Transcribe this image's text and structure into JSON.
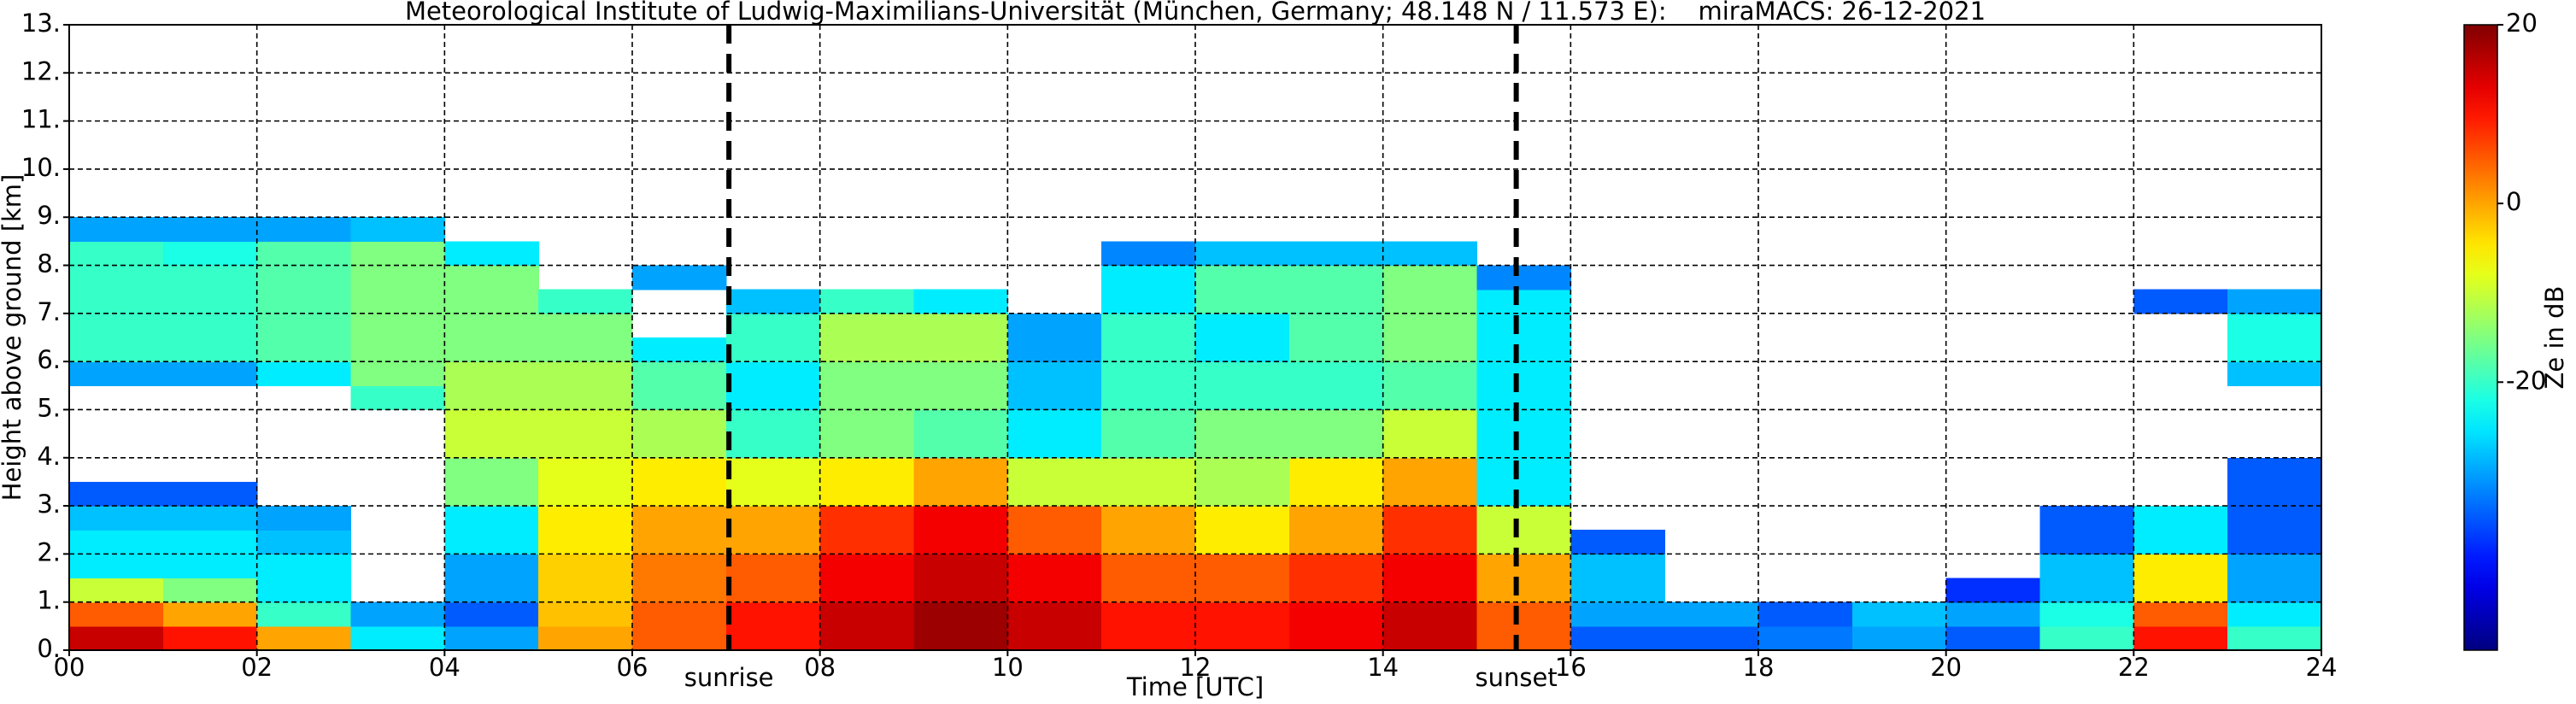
{
  "chart_data": {
    "type": "heatmap",
    "title": "Meteorological Institute of Ludwig-Maximilians-Universität (München, Germany; 48.148 N / 11.573 E):    miraMACS: 26-12-2021",
    "xlabel": "Time [UTC]",
    "ylabel": "Height above ground [km]",
    "colorbar_label": "Ze in dB",
    "colormap": "jet",
    "grid": true,
    "xlim": [
      0,
      24
    ],
    "ylim": [
      0,
      13
    ],
    "clim": [
      -50,
      20
    ],
    "xticks": [
      {
        "value": 0,
        "label": "00"
      },
      {
        "value": 2,
        "label": "02"
      },
      {
        "value": 4,
        "label": "04"
      },
      {
        "value": 6,
        "label": "06"
      },
      {
        "value": 8,
        "label": "08"
      },
      10,
      12,
      14,
      16,
      18,
      20,
      22,
      24
    ],
    "yticks": [
      {
        "value": 0,
        "label": "0."
      },
      {
        "value": 1,
        "label": "1."
      },
      {
        "value": 2,
        "label": "2."
      },
      {
        "value": 3,
        "label": "3."
      },
      {
        "value": 4,
        "label": "4."
      },
      {
        "value": 5,
        "label": "5."
      },
      {
        "value": 6,
        "label": "6."
      },
      {
        "value": 7,
        "label": "7."
      },
      {
        "value": 8,
        "label": "8."
      },
      {
        "value": 9,
        "label": "9."
      },
      {
        "value": 10,
        "label": "10."
      },
      {
        "value": 11,
        "label": "11."
      },
      {
        "value": 12,
        "label": "12."
      },
      {
        "value": 13,
        "label": "13."
      }
    ],
    "cticks": [
      -20,
      0,
      20
    ],
    "annotations": [
      {
        "text": "sunrise",
        "x": 7.03
      },
      {
        "text": "sunset",
        "x": 15.42
      }
    ],
    "x": [
      0,
      1,
      2,
      3,
      4,
      5,
      6,
      7,
      8,
      9,
      10,
      11,
      12,
      13,
      14,
      15,
      16,
      17,
      18,
      19,
      20,
      21,
      22,
      23,
      24
    ],
    "y": [
      0,
      0.5,
      1,
      1.5,
      2,
      2.5,
      3,
      3.5,
      4,
      4.5,
      5,
      5.5,
      6,
      6.5,
      7,
      7.5,
      8,
      8.5,
      9
    ],
    "z": [
      [
        15,
        10,
        0,
        -25,
        -30,
        0,
        5,
        10,
        15,
        18,
        15,
        10,
        10,
        12,
        15,
        5,
        -35,
        -35,
        -33,
        -30,
        -35,
        -20,
        10,
        -20
      ],
      [
        5,
        0,
        -20,
        -30,
        -35,
        -2,
        5,
        10,
        15,
        18,
        15,
        10,
        10,
        12,
        15,
        5,
        -30,
        -30,
        -35,
        -28,
        -30,
        -22,
        5,
        -25
      ],
      [
        -10,
        -15,
        -25,
        null,
        -30,
        -3,
        3,
        5,
        12,
        15,
        12,
        5,
        5,
        8,
        12,
        0,
        -28,
        null,
        null,
        null,
        -38,
        -28,
        -5,
        -30
      ],
      [
        -25,
        -25,
        -25,
        null,
        -30,
        -3,
        3,
        5,
        12,
        15,
        12,
        5,
        5,
        8,
        12,
        0,
        -28,
        null,
        null,
        null,
        null,
        -28,
        -5,
        -30
      ],
      [
        -25,
        -25,
        -28,
        null,
        -25,
        -5,
        0,
        0,
        8,
        12,
        5,
        0,
        -5,
        0,
        8,
        -10,
        -35,
        null,
        null,
        null,
        null,
        -35,
        -25,
        -35
      ],
      [
        -28,
        -28,
        -30,
        null,
        -25,
        -5,
        0,
        0,
        8,
        12,
        5,
        0,
        -5,
        0,
        8,
        -10,
        null,
        null,
        null,
        null,
        null,
        -35,
        -25,
        -35
      ],
      [
        -35,
        -35,
        null,
        null,
        -15,
        -8,
        -5,
        -8,
        -5,
        0,
        -10,
        -10,
        -12,
        -5,
        0,
        -25,
        null,
        null,
        null,
        null,
        null,
        null,
        null,
        -35
      ],
      [
        null,
        null,
        null,
        null,
        -15,
        -8,
        -5,
        -8,
        -5,
        0,
        -10,
        -10,
        -12,
        -5,
        0,
        -25,
        null,
        null,
        null,
        null,
        null,
        null,
        null,
        -35
      ],
      [
        null,
        null,
        null,
        null,
        -10,
        -10,
        -12,
        -20,
        -15,
        -18,
        -25,
        -18,
        -15,
        -15,
        -10,
        -25,
        null,
        null,
        null,
        null,
        null,
        null,
        null,
        null
      ],
      [
        null,
        null,
        null,
        null,
        -10,
        -10,
        -12,
        -20,
        -15,
        -18,
        -25,
        -18,
        -15,
        -15,
        -10,
        -25,
        null,
        null,
        null,
        null,
        null,
        null,
        null,
        null
      ],
      [
        null,
        null,
        null,
        -20,
        -12,
        -12,
        -18,
        -25,
        -15,
        -15,
        -28,
        -20,
        -20,
        -20,
        -18,
        -25,
        null,
        null,
        null,
        null,
        null,
        null,
        null,
        null
      ],
      [
        -30,
        -30,
        -25,
        -15,
        -12,
        -12,
        -18,
        -25,
        -15,
        -15,
        -28,
        -20,
        -20,
        -20,
        -18,
        -25,
        null,
        null,
        null,
        null,
        null,
        null,
        null,
        -28
      ],
      [
        -20,
        -20,
        -18,
        -15,
        -15,
        -15,
        -25,
        -20,
        -12,
        -12,
        -30,
        -20,
        -25,
        -18,
        -15,
        -25,
        null,
        null,
        null,
        null,
        null,
        null,
        null,
        -22
      ],
      [
        -20,
        -20,
        -18,
        -15,
        -15,
        -15,
        null,
        -20,
        -12,
        -12,
        -30,
        -20,
        -25,
        -18,
        -15,
        -25,
        null,
        null,
        null,
        null,
        null,
        null,
        null,
        -22
      ],
      [
        -20,
        -20,
        -18,
        -15,
        -15,
        -20,
        null,
        -28,
        -20,
        -25,
        null,
        -25,
        -18,
        -18,
        -15,
        -25,
        null,
        null,
        null,
        null,
        null,
        null,
        -35,
        -30
      ],
      [
        -20,
        -20,
        -18,
        -15,
        -15,
        null,
        -30,
        null,
        null,
        null,
        null,
        -25,
        -18,
        -18,
        -15,
        -32,
        null,
        null,
        null,
        null,
        null,
        null,
        null,
        null
      ],
      [
        -20,
        -22,
        -18,
        -15,
        -25,
        null,
        null,
        null,
        null,
        null,
        null,
        -32,
        -28,
        -28,
        -28,
        null,
        null,
        null,
        null,
        null,
        null,
        null,
        null,
        null
      ],
      [
        -30,
        -30,
        -30,
        -28,
        null,
        null,
        null,
        null,
        null,
        null,
        null,
        null,
        null,
        null,
        null,
        null,
        null,
        null,
        null,
        null,
        null,
        null,
        null,
        null
      ]
    ]
  }
}
